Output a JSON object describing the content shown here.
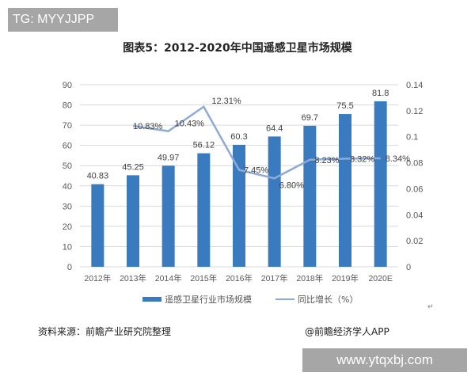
{
  "watermark_top": "TG: MYYJJPP",
  "title": "图表5：2012-2020年中国遥感卫星市场规模",
  "legend": {
    "bar": "遥感卫星行业市场规模",
    "line": "同比增长（%）"
  },
  "source": "资料来源：前瞻产业研究院整理",
  "credit": "@前瞻经济学人APP",
  "watermark_bottom": "www.ytqxbj.com",
  "return_mark": "↵",
  "colors": {
    "bar": "#3a7bbf",
    "line": "#8eaad6",
    "grid": "#d9d9d9"
  },
  "chart_data": {
    "type": "bar",
    "title": "图表5：2012-2020年中国遥感卫星市场规模",
    "categories": [
      "2012年",
      "2013年",
      "2014年",
      "2015年",
      "2016年",
      "2017年",
      "2018年",
      "2019年",
      "2020E"
    ],
    "series": [
      {
        "name": "遥感卫星行业市场规模",
        "type": "bar",
        "axis": "left",
        "values": [
          40.83,
          45.25,
          49.97,
          56.12,
          60.3,
          64.4,
          69.7,
          75.5,
          81.8
        ],
        "labels": [
          "40.83",
          "45.25",
          "49.97",
          "56.12",
          "60.3",
          "64.4",
          "69.7",
          "75.5",
          "81.8"
        ]
      },
      {
        "name": "同比增长（%）",
        "type": "line",
        "axis": "right",
        "values": [
          null,
          0.1083,
          0.1043,
          0.1231,
          0.0745,
          0.068,
          0.0823,
          0.0832,
          0.0834
        ],
        "labels": [
          "",
          "10.83%",
          "10.43%",
          "12.31%",
          "7.45%",
          "6.80%",
          "8.23%",
          "8.32%",
          "8.34%"
        ]
      }
    ],
    "y_left": {
      "min": 0,
      "max": 90,
      "ticks": [
        "0",
        "10",
        "20",
        "30",
        "40",
        "50",
        "60",
        "70",
        "80",
        "90"
      ]
    },
    "y_right": {
      "min": 0,
      "max": 0.14,
      "ticks": [
        "0",
        "0.02",
        "0.04",
        "0.06",
        "0.08",
        "0.1",
        "0.12",
        "0.14"
      ]
    },
    "grid": true,
    "legend_position": "bottom"
  }
}
